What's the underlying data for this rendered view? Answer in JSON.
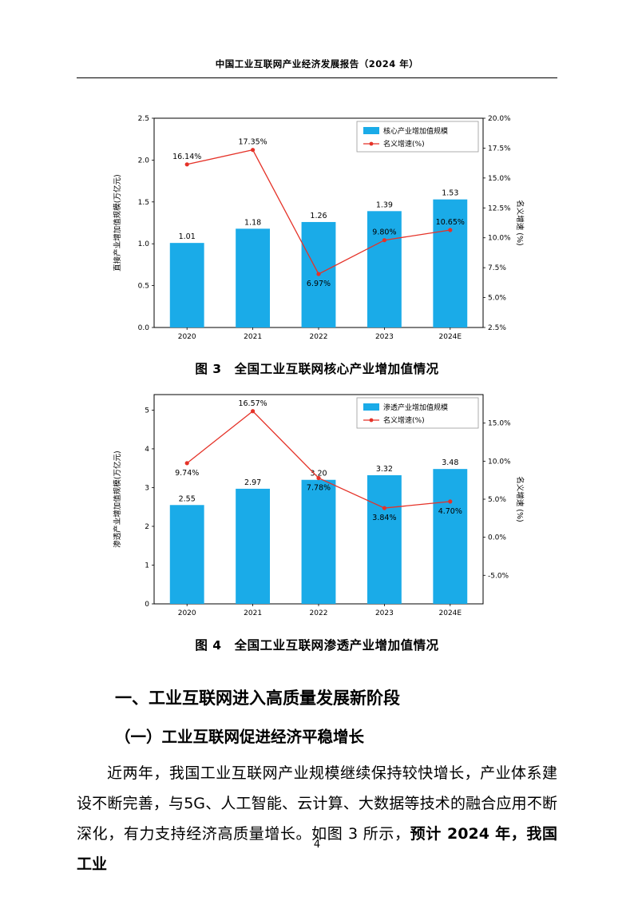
{
  "page": {
    "header_title": "中国工业互联网产业经济发展报告（2024 年）",
    "page_number": "4"
  },
  "section": {
    "heading": "一、工业互联网进入高质量发展新阶段",
    "subheading": "（一）工业互联网促进经济平稳增长",
    "paragraph_normal": "近两年，我国工业互联网产业规模继续保持较快增长，产业体系建设不断完善，与5G、人工智能、云计算、大数据等技术的融合应用不断深化，有力支持经济高质量增长。如图 3 所示，",
    "paragraph_bold": "预计 2024 年，我国工业"
  },
  "chart_data": [
    {
      "type": "bar",
      "caption": "图 3　全国工业互联网核心产业增加值情况",
      "categories": [
        "2020",
        "2021",
        "2022",
        "2023",
        "2024E"
      ],
      "series": [
        {
          "name": "核心产业增加值规模",
          "type": "bar",
          "axis": "left",
          "values": [
            1.01,
            1.18,
            1.26,
            1.39,
            1.53
          ],
          "labels": [
            "1.01",
            "1.18",
            "1.26",
            "1.39",
            "1.53"
          ]
        },
        {
          "name": "名义增速(%)",
          "type": "line",
          "axis": "right",
          "values": [
            16.14,
            17.35,
            6.97,
            9.8,
            10.65
          ],
          "labels": [
            "16.14%",
            "17.35%",
            "6.97%",
            "9.80%",
            "10.65%"
          ],
          "label_pos": [
            "above",
            "above",
            "below",
            "above",
            "above"
          ]
        }
      ],
      "ylabel_left": "直接产业增加值规模(万亿元)",
      "ylabel_right": "名义增速 (%)",
      "ylim_left": [
        0,
        2.5
      ],
      "ylim_right": [
        2.5,
        20
      ],
      "yticks_left": {
        "values": [
          0,
          0.5,
          1,
          1.5,
          2,
          2.5
        ],
        "labels": [
          "0.0",
          "0.5",
          "1.0",
          "1.5",
          "2.0",
          "2.5"
        ]
      },
      "yticks_right": {
        "values": [
          2.5,
          5,
          7.5,
          10,
          12.5,
          15,
          17.5,
          20
        ],
        "labels": [
          "2.5%",
          "5.0%",
          "7.5%",
          "10.0%",
          "12.5%",
          "15.0%",
          "17.5%",
          "20.0%"
        ]
      },
      "legend": [
        "核心产业增加值规模",
        "名义增速(%)"
      ],
      "legend_position": "upper right",
      "grid": false,
      "bar_color": "#1aabe8",
      "line_color": "#e53228"
    },
    {
      "type": "bar",
      "caption": "图 4　全国工业互联网渗透产业增加值情况",
      "categories": [
        "2020",
        "2021",
        "2022",
        "2023",
        "2024E"
      ],
      "series": [
        {
          "name": "渗透产业增加值规模",
          "type": "bar",
          "axis": "left",
          "values": [
            2.55,
            2.97,
            3.2,
            3.32,
            3.48
          ],
          "labels": [
            "2.55",
            "2.97",
            "3.20",
            "3.32",
            "3.48"
          ]
        },
        {
          "name": "名义增速(%)",
          "type": "line",
          "axis": "right",
          "values": [
            9.74,
            16.57,
            7.78,
            3.84,
            4.7
          ],
          "labels": [
            "9.74%",
            "16.57%",
            "7.78%",
            "3.84%",
            "4.70%"
          ],
          "label_pos": [
            "below",
            "above",
            "below",
            "below",
            "below"
          ]
        }
      ],
      "ylabel_left": "渗透产业增加值规模(万亿元)",
      "ylabel_right": "名义增速 (%)",
      "ylim_left": [
        0,
        5.4
      ],
      "ylim_right": [
        -8.75,
        18.75
      ],
      "yticks_left": {
        "values": [
          0,
          1,
          2,
          3,
          4,
          5
        ],
        "labels": [
          "0",
          "1",
          "2",
          "3",
          "4",
          "5"
        ]
      },
      "yticks_right": {
        "values": [
          -5,
          0,
          5,
          10,
          15
        ],
        "labels": [
          "-5.0%",
          "0.0%",
          "5.0%",
          "10.0%",
          "15.0%"
        ]
      },
      "legend": [
        "渗透产业增加值规模",
        "名义增速(%)"
      ],
      "legend_position": "upper right",
      "grid": false,
      "bar_color": "#1aabe8",
      "line_color": "#e53228"
    }
  ]
}
